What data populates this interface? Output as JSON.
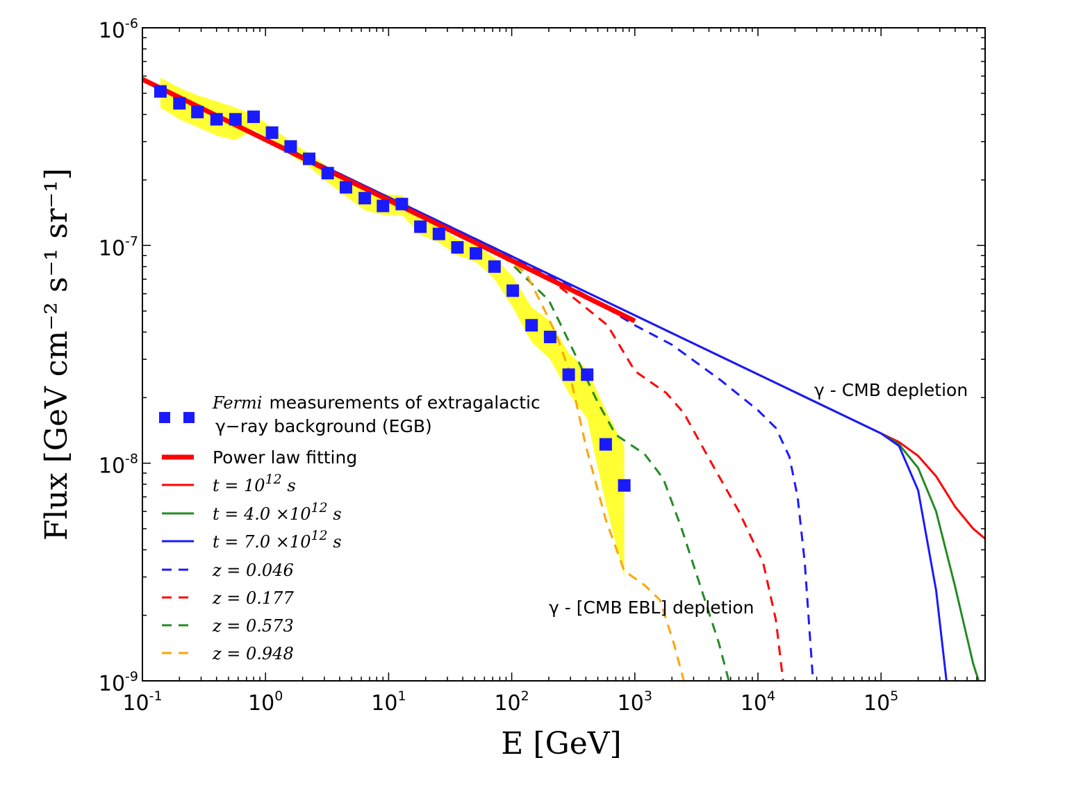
{
  "chart_data": {
    "type": "line",
    "title": "",
    "xlabel": "E [GeV]",
    "ylabel": "Flux [GeV cm⁻² s⁻¹ sr⁻¹]",
    "xscale": "log",
    "yscale": "log",
    "xlim": [
      0.1,
      700000
    ],
    "ylim": [
      1e-09,
      1e-06
    ],
    "x_ticks": [
      {
        "base": "10",
        "exp": "-1",
        "value": 0.1
      },
      {
        "base": "10",
        "exp": "0",
        "value": 1
      },
      {
        "base": "10",
        "exp": "1",
        "value": 10
      },
      {
        "base": "10",
        "exp": "2",
        "value": 100
      },
      {
        "base": "10",
        "exp": "3",
        "value": 1000
      },
      {
        "base": "10",
        "exp": "4",
        "value": 10000
      },
      {
        "base": "10",
        "exp": "5",
        "value": 100000
      }
    ],
    "y_ticks": [
      {
        "base": "10",
        "exp": "-9",
        "value": 1e-09
      },
      {
        "base": "10",
        "exp": "-8",
        "value": 1e-08
      },
      {
        "base": "10",
        "exp": "-7",
        "value": 1e-07
      },
      {
        "base": "10",
        "exp": "-6",
        "value": 1e-06
      }
    ],
    "legend_position": "lower-left",
    "annotations": [
      {
        "text": "γ - CMB depletion",
        "x": 7000,
        "y": 1.9e-08
      },
      {
        "text": "γ - [CMB EBL] depletion",
        "x": 55,
        "y": 2.1e-09
      }
    ],
    "fermi_egb": {
      "name": "Fermi measurements of extragalactic γ−ray background (EGB)",
      "legend_label_italic": "Fermi",
      "legend_label_line1": "measurements of extragalactic",
      "legend_label_line2": "γ−ray background (EGB)",
      "color": "#1a1aff",
      "band_color": "#ffff33",
      "x": [
        0.14,
        0.2,
        0.28,
        0.4,
        0.57,
        0.8,
        1.13,
        1.6,
        2.26,
        3.2,
        4.5,
        6.4,
        9.0,
        12.8,
        18.1,
        25.6,
        36.2,
        51.2,
        72.4,
        102,
        145,
        205,
        290,
        410,
        580,
        820
      ],
      "y": [
        5.1e-07,
        4.5e-07,
        4.1e-07,
        3.8e-07,
        3.8e-07,
        3.9e-07,
        3.3e-07,
        2.85e-07,
        2.5e-07,
        2.15e-07,
        1.85e-07,
        1.65e-07,
        1.52e-07,
        1.55e-07,
        1.22e-07,
        1.13e-07,
        9.8e-08,
        9.2e-08,
        8e-08,
        6.2e-08,
        4.3e-08,
        3.8e-08,
        2.55e-08,
        2.55e-08,
        1.22e-08,
        7.9e-09
      ],
      "band_upper": [
        5.9e-07,
        5.3e-07,
        4.9e-07,
        4.6e-07,
        4.3e-07,
        4e-07,
        3.5e-07,
        3e-07,
        2.65e-07,
        2.3e-07,
        2e-07,
        1.8e-07,
        1.72e-07,
        1.7e-07,
        1.35e-07,
        1.22e-07,
        1.07e-07,
        1e-07,
        8.8e-08,
        7.2e-08,
        5.2e-08,
        4.5e-08,
        3.2e-08,
        2.7e-08,
        1.75e-08,
        1.2e-08
      ],
      "band_lower": [
        4.3e-07,
        3.8e-07,
        3.5e-07,
        3.2e-07,
        3.05e-07,
        3.4e-07,
        3.05e-07,
        2.6e-07,
        2.3e-07,
        1.95e-07,
        1.68e-07,
        1.45e-07,
        1.38e-07,
        1.38e-07,
        1.12e-07,
        1.03e-07,
        9e-08,
        8.4e-08,
        7e-08,
        5.2e-08,
        3.6e-08,
        3e-08,
        2.1e-08,
        1.6e-08,
        6.5e-09,
        3e-09
      ]
    },
    "series": [
      {
        "name": "Power law fitting",
        "legend_label": "Power law fitting",
        "color": "#ff0000",
        "style": "thick",
        "x": [
          0.1,
          1000
        ],
        "y": [
          5.8e-07,
          4.5e-08
        ]
      },
      {
        "name": "t=10^12 s",
        "legend_base": "t = 10",
        "legend_sup": "12",
        "legend_tail": " s",
        "color": "#ff0000",
        "style": "solid",
        "x": [
          0.1,
          100000,
          140000,
          200000,
          280000,
          400000,
          560000,
          700000
        ],
        "y": [
          5.8e-07,
          1.37e-08,
          1.25e-08,
          1.08e-08,
          8.7e-09,
          6.3e-09,
          5e-09,
          4.5e-09
        ]
      },
      {
        "name": "t=4.0x10^12 s",
        "legend_base": "t = 4.0 ×10",
        "legend_sup": "12",
        "legend_tail": " s",
        "color": "#228b22",
        "style": "solid",
        "x": [
          0.1,
          100000,
          140000,
          200000,
          280000,
          400000,
          560000,
          620000
        ],
        "y": [
          5.8e-07,
          1.37e-08,
          1.22e-08,
          9.5e-09,
          6e-09,
          2.7e-09,
          1.2e-09,
          1e-09
        ]
      },
      {
        "name": "t=7.0x10^12 s",
        "legend_base": "t = 7.0 ×10",
        "legend_sup": "12",
        "legend_tail": " s",
        "color": "#1a1aff",
        "style": "solid",
        "x": [
          0.1,
          100000,
          140000,
          200000,
          280000,
          340000
        ],
        "y": [
          5.8e-07,
          1.37e-08,
          1.2e-08,
          7.5e-09,
          2.6e-09,
          1e-09
        ]
      },
      {
        "name": "z=0.046",
        "legend_label": "z = 0.046",
        "color": "#1a1aff",
        "style": "dashed",
        "x": [
          0.1,
          200,
          400,
          1000,
          2000,
          5000,
          10000,
          14000,
          18000,
          21000,
          24000,
          28000
        ],
        "y": [
          5.8e-07,
          7.3e-08,
          5.9e-08,
          4.3e-08,
          3.5e-08,
          2.4e-08,
          1.75e-08,
          1.45e-08,
          1.07e-08,
          7e-09,
          3.5e-09,
          1e-09
        ]
      },
      {
        "name": "z=0.177",
        "legend_label": "z = 0.177",
        "color": "#ff0000",
        "style": "dashed",
        "x": [
          0.1,
          150,
          300,
          600,
          1000,
          1800,
          2500,
          4000,
          7000,
          11000,
          14000,
          16000
        ],
        "y": [
          5.8e-07,
          8e-08,
          5.9e-08,
          4.3e-08,
          2.65e-08,
          2.1e-08,
          1.7e-08,
          1.05e-08,
          6e-09,
          3.5e-09,
          1.9e-09,
          1e-09
        ]
      },
      {
        "name": "z=0.573",
        "legend_label": "z = 0.573",
        "color": "#228b22",
        "style": "dashed",
        "x": [
          0.1,
          90,
          200,
          300,
          500,
          700,
          1200,
          1700,
          2400,
          3500,
          4800,
          5800
        ],
        "y": [
          5.8e-07,
          8.7e-08,
          5.6e-08,
          3.5e-08,
          1.9e-08,
          1.35e-08,
          1.1e-08,
          8.5e-09,
          5e-09,
          2.6e-09,
          1.5e-09,
          1e-09
        ]
      },
      {
        "name": "z=0.948",
        "legend_label": "z = 0.948",
        "color": "#ffa500",
        "style": "dashed",
        "x": [
          0.1,
          80,
          130,
          180,
          230,
          290,
          400,
          580,
          820,
          1200,
          1600,
          2100,
          2500
        ],
        "y": [
          5.8e-07,
          9e-08,
          7.5e-08,
          5.2e-08,
          3.9e-08,
          2.7e-08,
          1.2e-08,
          5.5e-09,
          3.2e-09,
          2.75e-09,
          2.35e-09,
          1.45e-09,
          1e-09
        ]
      }
    ]
  }
}
